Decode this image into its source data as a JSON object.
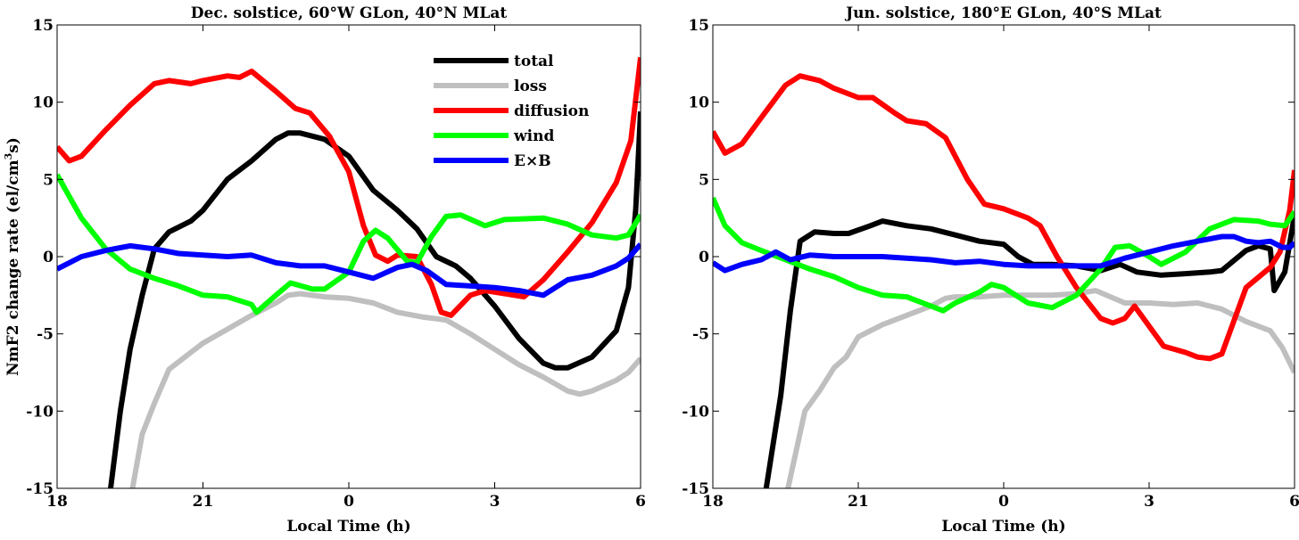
{
  "chart_data": [
    {
      "type": "line",
      "title": "Dec. solstice, 60°W GLon, 40°N MLat",
      "xlabel": "Local Time (h)",
      "ylabel": "NmF2 change rate (el/cm³s)",
      "ylabel_parts": {
        "main": "NmF2 change rate (el/cm",
        "sup": "3",
        "tail": "s)"
      },
      "xlim": [
        18,
        30
      ],
      "ylim": [
        -15,
        15
      ],
      "xticks": [
        18,
        21,
        24,
        27,
        30
      ],
      "xtick_labels": [
        "18",
        "21",
        "0",
        "3",
        "6"
      ],
      "yticks": [
        -15,
        -10,
        -5,
        0,
        5,
        10,
        15
      ],
      "ytick_labels": [
        "-15",
        "-10",
        "-5",
        "0",
        "5",
        "10",
        "15"
      ],
      "grid": false,
      "legend": {
        "position": "top-right",
        "entries": [
          "total",
          "loss",
          "diffusion",
          "wind",
          "E×B"
        ]
      },
      "series": [
        {
          "name": "total",
          "color": "#000000",
          "x": [
            19.1,
            19.3,
            19.5,
            19.75,
            20,
            20.3,
            20.75,
            21,
            21.5,
            22,
            22.5,
            22.75,
            23,
            23.5,
            24,
            24.5,
            25,
            25.4,
            25.8,
            26.2,
            26.5,
            27,
            27.5,
            28,
            28.25,
            28.5,
            29,
            29.5,
            29.75,
            29.9,
            30
          ],
          "y": [
            -15,
            -10,
            -6,
            -2.5,
            0.5,
            1.6,
            2.3,
            3.0,
            5.0,
            6.2,
            7.6,
            8.0,
            8.0,
            7.6,
            6.5,
            4.3,
            3.0,
            1.8,
            0.0,
            -0.6,
            -1.4,
            -3.2,
            -5.3,
            -6.9,
            -7.2,
            -7.2,
            -6.5,
            -4.8,
            -2.0,
            3.0,
            9.4
          ]
        },
        {
          "name": "loss",
          "color": "#bfbfbf",
          "x": [
            19.55,
            19.75,
            20,
            20.3,
            20.75,
            21,
            21.5,
            22,
            22.5,
            22.75,
            23,
            23.5,
            24,
            24.5,
            25,
            25.5,
            26,
            26.5,
            27,
            27.5,
            28,
            28.5,
            28.75,
            29,
            29.5,
            29.75,
            30
          ],
          "y": [
            -15,
            -11.5,
            -9.5,
            -7.3,
            -6.2,
            -5.6,
            -4.7,
            -3.8,
            -3.0,
            -2.5,
            -2.4,
            -2.6,
            -2.7,
            -3.0,
            -3.6,
            -3.9,
            -4.1,
            -5.0,
            -6.0,
            -7.0,
            -7.8,
            -8.7,
            -8.9,
            -8.7,
            -8.0,
            -7.5,
            -6.6
          ]
        },
        {
          "name": "diffusion",
          "color": "#ff0000",
          "x": [
            18,
            18.25,
            18.5,
            19,
            19.5,
            20,
            20.3,
            20.75,
            21,
            21.5,
            21.75,
            22,
            22.5,
            22.9,
            23.2,
            23.6,
            24,
            24.3,
            24.55,
            24.8,
            25,
            25.4,
            25.7,
            25.9,
            26.1,
            26.5,
            26.8,
            27.2,
            27.6,
            28,
            28.5,
            29,
            29.5,
            29.8,
            30
          ],
          "y": [
            7.1,
            6.2,
            6.5,
            8.2,
            9.8,
            11.2,
            11.4,
            11.2,
            11.4,
            11.7,
            11.6,
            12.0,
            10.7,
            9.6,
            9.3,
            7.8,
            5.5,
            2.0,
            0.1,
            -0.3,
            0.1,
            0.0,
            -1.8,
            -3.6,
            -3.8,
            -2.5,
            -2.2,
            -2.4,
            -2.6,
            -1.5,
            0.3,
            2.2,
            4.8,
            7.5,
            12.9
          ]
        },
        {
          "name": "wind",
          "color": "#00ff00",
          "x": [
            18,
            18.5,
            19,
            19.5,
            20,
            20.5,
            21,
            21.5,
            22,
            22.1,
            22.5,
            22.8,
            23.25,
            23.5,
            24,
            24.3,
            24.55,
            24.8,
            25.2,
            25.4,
            25.7,
            26,
            26.3,
            26.8,
            27.2,
            28,
            28.5,
            29,
            29.5,
            29.75,
            30
          ],
          "y": [
            5.3,
            2.5,
            0.5,
            -0.8,
            -1.4,
            -1.9,
            -2.5,
            -2.6,
            -3.1,
            -3.6,
            -2.5,
            -1.7,
            -2.1,
            -2.1,
            -1.0,
            1.0,
            1.7,
            1.2,
            -0.3,
            -0.4,
            1.3,
            2.6,
            2.7,
            2.0,
            2.4,
            2.5,
            2.1,
            1.4,
            1.2,
            1.4,
            2.7
          ]
        },
        {
          "name": "E×B",
          "color": "#0000ff",
          "x": [
            18,
            18.5,
            19,
            19.5,
            20,
            20.5,
            21,
            21.5,
            22,
            22.5,
            23,
            23.5,
            24,
            24.5,
            25,
            25.3,
            25.6,
            26,
            26.5,
            27,
            27.5,
            28,
            28.5,
            29,
            29.5,
            29.75,
            30
          ],
          "y": [
            -0.8,
            0.0,
            0.4,
            0.7,
            0.5,
            0.2,
            0.1,
            0.0,
            0.1,
            -0.4,
            -0.6,
            -0.6,
            -1.0,
            -1.4,
            -0.7,
            -0.5,
            -0.9,
            -1.8,
            -1.9,
            -2.0,
            -2.2,
            -2.5,
            -1.5,
            -1.2,
            -0.6,
            -0.1,
            0.8
          ]
        }
      ]
    },
    {
      "type": "line",
      "title": "Jun. solstice, 180°E GLon, 40°S MLat",
      "xlabel": "Local Time (h)",
      "ylabel": "",
      "xlim": [
        18,
        30
      ],
      "ylim": [
        -15,
        15
      ],
      "xticks": [
        18,
        21,
        24,
        27,
        30
      ],
      "xtick_labels": [
        "18",
        "21",
        "0",
        "3",
        "6"
      ],
      "yticks": [
        -15,
        -10,
        -5,
        0,
        5,
        10,
        15
      ],
      "ytick_labels": [
        "-15",
        "-10",
        "-5",
        "0",
        "5",
        "10",
        "15"
      ],
      "grid": false,
      "series": [
        {
          "name": "total",
          "color": "#000000",
          "x": [
            19.1,
            19.4,
            19.6,
            19.8,
            20.1,
            20.5,
            20.8,
            21.25,
            21.5,
            22,
            22.5,
            23,
            23.5,
            24,
            24.3,
            24.6,
            25,
            25.5,
            26,
            26.4,
            26.75,
            27.25,
            27.75,
            28.25,
            28.5,
            29,
            29.25,
            29.5,
            29.58,
            29.8,
            30
          ],
          "y": [
            -15,
            -9,
            -3.5,
            1.0,
            1.6,
            1.5,
            1.5,
            2.0,
            2.3,
            2.0,
            1.8,
            1.4,
            1.0,
            0.8,
            0.0,
            -0.5,
            -0.5,
            -0.6,
            -0.9,
            -0.5,
            -1.0,
            -1.2,
            -1.1,
            -1.0,
            -0.9,
            0.4,
            0.7,
            0.5,
            -2.2,
            -1.0,
            2.7
          ]
        },
        {
          "name": "loss",
          "color": "#bfbfbf",
          "x": [
            19.55,
            19.9,
            20.2,
            20.5,
            20.75,
            21,
            21.5,
            22,
            22.5,
            22.8,
            23,
            23.5,
            24,
            25,
            25.5,
            25.9,
            26.5,
            27,
            27.5,
            28,
            28.5,
            29,
            29.5,
            29.75,
            30
          ],
          "y": [
            -15,
            -10.0,
            -8.7,
            -7.2,
            -6.5,
            -5.2,
            -4.4,
            -3.8,
            -3.2,
            -2.7,
            -2.6,
            -2.6,
            -2.5,
            -2.5,
            -2.4,
            -2.2,
            -3.0,
            -3.0,
            -3.1,
            -3.0,
            -3.4,
            -4.2,
            -4.8,
            -5.9,
            -7.5
          ]
        },
        {
          "name": "diffusion",
          "color": "#ff0000",
          "x": [
            18,
            18.25,
            18.6,
            19,
            19.5,
            19.8,
            20.2,
            20.5,
            21,
            21.3,
            21.75,
            22,
            22.4,
            22.8,
            23.25,
            23.6,
            24,
            24.5,
            24.75,
            25.1,
            25.5,
            25.8,
            26,
            26.25,
            26.5,
            26.7,
            27,
            27.3,
            27.75,
            28,
            28.25,
            28.5,
            29,
            29.5,
            29.7,
            29.9,
            30
          ],
          "y": [
            8.1,
            6.7,
            7.3,
            9.0,
            11.1,
            11.7,
            11.4,
            10.9,
            10.3,
            10.3,
            9.3,
            8.8,
            8.6,
            7.7,
            5.0,
            3.4,
            3.1,
            2.5,
            2.0,
            0.0,
            -2.0,
            -3.2,
            -4.0,
            -4.3,
            -4.0,
            -3.2,
            -4.5,
            -5.8,
            -6.2,
            -6.5,
            -6.6,
            -6.3,
            -2.0,
            -0.7,
            0.3,
            3.0,
            5.6
          ]
        },
        {
          "name": "wind",
          "color": "#00ff00",
          "x": [
            18,
            18.25,
            18.6,
            19,
            19.5,
            20,
            20.5,
            21,
            21.5,
            22,
            22.5,
            22.75,
            23,
            23.5,
            23.75,
            24,
            24.5,
            25,
            25.5,
            26,
            26.3,
            26.6,
            27,
            27.25,
            27.75,
            28.25,
            28.75,
            29.25,
            29.5,
            29.8,
            30
          ],
          "y": [
            3.8,
            2.0,
            0.9,
            0.4,
            -0.2,
            -0.8,
            -1.3,
            -2.0,
            -2.5,
            -2.6,
            -3.2,
            -3.5,
            -3.0,
            -2.3,
            -1.8,
            -2.0,
            -3.0,
            -3.3,
            -2.5,
            -0.8,
            0.6,
            0.7,
            0.0,
            -0.5,
            0.3,
            1.8,
            2.4,
            2.3,
            2.1,
            2.0,
            2.9
          ]
        },
        {
          "name": "E×B",
          "color": "#0000ff",
          "x": [
            18,
            18.25,
            18.6,
            19,
            19.3,
            19.6,
            20,
            20.5,
            21,
            21.5,
            22,
            22.5,
            23,
            23.5,
            24,
            24.5,
            25,
            25.5,
            26,
            26.5,
            27,
            27.5,
            28,
            28.5,
            28.75,
            29,
            29.25,
            29.5,
            29.75,
            29.9,
            30
          ],
          "y": [
            -0.4,
            -0.9,
            -0.5,
            -0.2,
            0.3,
            -0.2,
            0.1,
            0.0,
            0.0,
            0.0,
            -0.1,
            -0.2,
            -0.4,
            -0.3,
            -0.5,
            -0.6,
            -0.6,
            -0.6,
            -0.6,
            -0.1,
            0.3,
            0.7,
            1.0,
            1.3,
            1.3,
            1.0,
            0.9,
            1.0,
            0.6,
            0.6,
            0.9
          ]
        }
      ]
    }
  ]
}
